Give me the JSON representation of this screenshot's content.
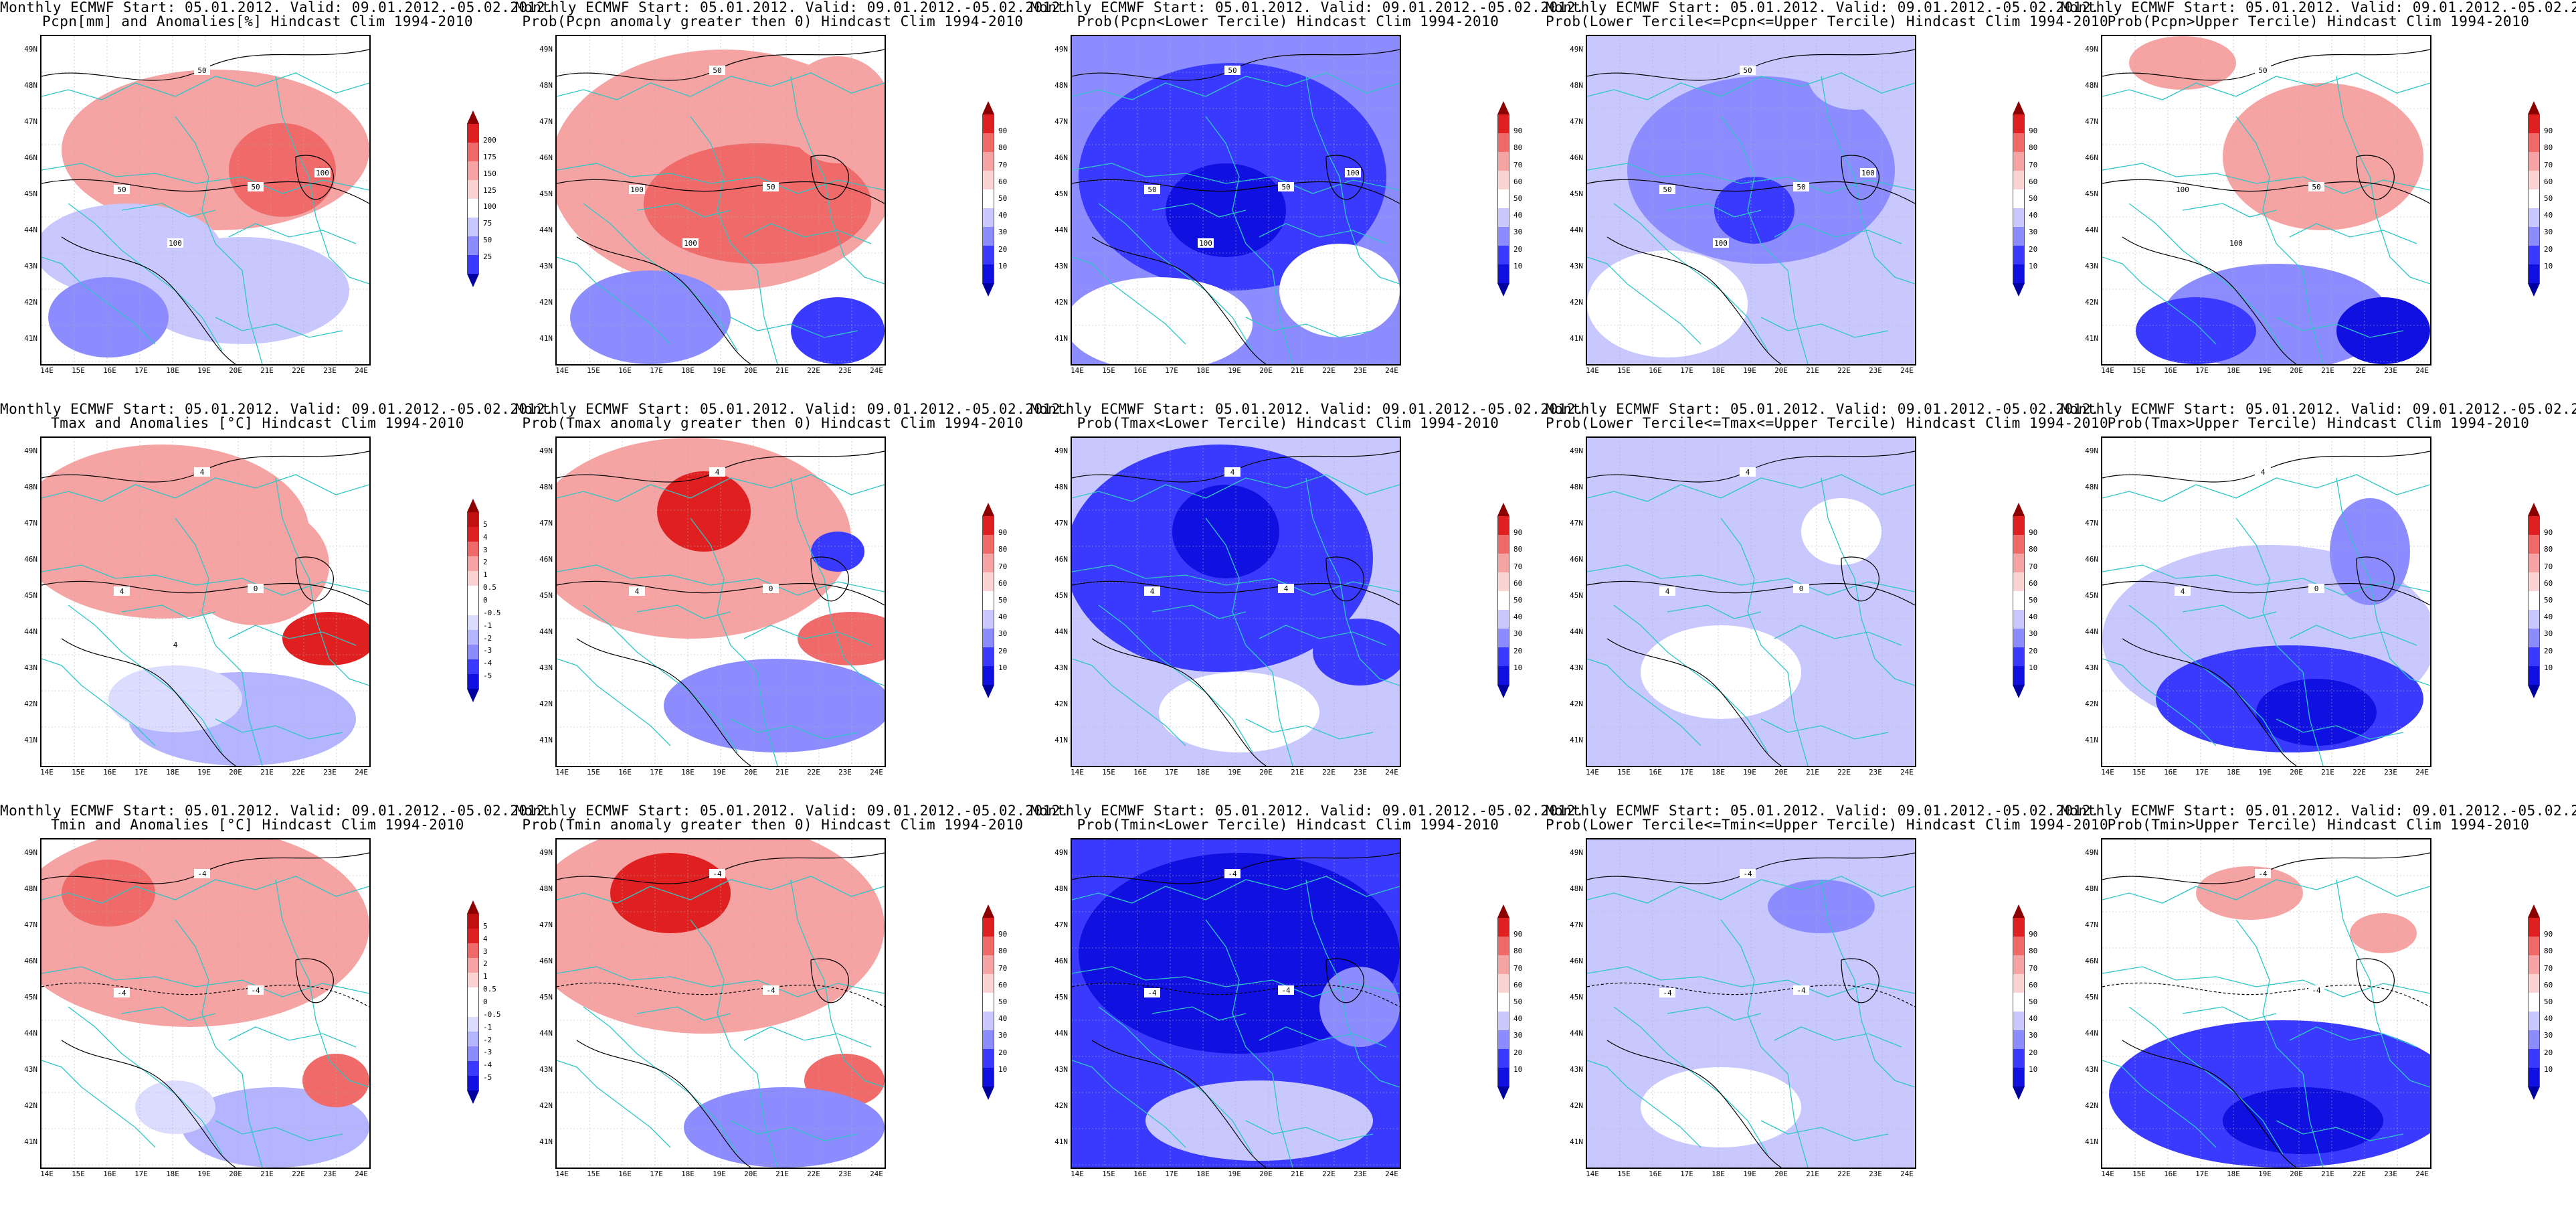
{
  "figure": {
    "common_title": "Monthly ECMWF Start: 05.01.2012. Valid: 09.01.2012.-05.02.2012.",
    "lat_labels": [
      "49N",
      "48N",
      "47N",
      "46N",
      "45N",
      "44N",
      "43N",
      "42N",
      "41N"
    ],
    "lon_labels": [
      "14E",
      "15E",
      "16E",
      "17E",
      "18E",
      "19E",
      "20E",
      "21E",
      "22E",
      "23E",
      "24E"
    ],
    "colors": {
      "background": "#ffffff",
      "country_borders": "#2ec6c6",
      "contours": "#000000",
      "frame": "#000000"
    }
  },
  "colorbars": {
    "pcpn_anomaly": {
      "labels": [
        "200",
        "175",
        "150",
        "125",
        "100",
        "75",
        "50",
        "25"
      ],
      "colors": [
        "#8b0000",
        "#e02020",
        "#f06a6a",
        "#f6a3a3",
        "#fbd3d3",
        "#ffffff",
        "#c8c8ff",
        "#8c8cff",
        "#3a3aff",
        "#0000a0"
      ]
    },
    "temp_anomaly": {
      "labels": [
        "5",
        "4",
        "3",
        "2",
        "1",
        "0.5",
        "0",
        "-0.5",
        "-1",
        "-2",
        "-3",
        "-4",
        "-5"
      ],
      "colors": [
        "#8b0000",
        "#c01010",
        "#e02020",
        "#f06a6a",
        "#f6a3a3",
        "#fbd3d3",
        "#ffffff",
        "#ffffff",
        "#dcdcff",
        "#b4b4ff",
        "#8c8cff",
        "#3a3aff",
        "#1010e0",
        "#0000a0"
      ]
    },
    "probability": {
      "labels": [
        "90",
        "80",
        "70",
        "60",
        "50",
        "40",
        "30",
        "20",
        "10"
      ],
      "colors": [
        "#8b0000",
        "#e02020",
        "#f06a6a",
        "#f6a3a3",
        "#fbd3d3",
        "#ffffff",
        "#c8c8ff",
        "#8c8cff",
        "#3a3aff",
        "#1010e0",
        "#0000a0"
      ]
    }
  },
  "panels": [
    {
      "subtitle": "Pcpn[mm] and Anomalies[%] Hindcast Clim 1994-2010",
      "colorbar": "pcpn_anomaly",
      "contour_labels": [
        "50",
        "50",
        "50",
        "100",
        "100"
      ]
    },
    {
      "subtitle": "Prob(Pcpn anomaly greater then 0) Hindcast Clim 1994-2010",
      "colorbar": "probability",
      "contour_labels": [
        "50",
        "50",
        "100",
        "100"
      ]
    },
    {
      "subtitle": "Prob(Pcpn<Lower Tercile) Hindcast Clim 1994-2010",
      "colorbar": "probability",
      "contour_labels": [
        "50",
        "50",
        "50",
        "100",
        "100"
      ]
    },
    {
      "subtitle": "Prob(Lower Tercile<=Pcpn<=Upper Tercile) Hindcast Clim 1994-2010",
      "colorbar": "probability",
      "contour_labels": [
        "50",
        "50",
        "50",
        "100",
        "100"
      ]
    },
    {
      "subtitle": "Prob(Pcpn>Upper Tercile) Hindcast Clim 1994-2010",
      "colorbar": "probability",
      "contour_labels": [
        "50",
        "50",
        "100",
        "100"
      ]
    },
    {
      "subtitle": "Tmax and Anomalies [°C] Hindcast Clim 1994-2010",
      "colorbar": "temp_anomaly",
      "contour_labels": [
        "4",
        "0",
        "4",
        "4"
      ]
    },
    {
      "subtitle": "Prob(Tmax anomaly greater then 0) Hindcast Clim 1994-2010",
      "colorbar": "probability",
      "contour_labels": [
        "4",
        "0",
        "4"
      ]
    },
    {
      "subtitle": "Prob(Tmax<Lower Tercile) Hindcast Clim 1994-2010",
      "colorbar": "probability",
      "contour_labels": [
        "4",
        "4",
        "4"
      ]
    },
    {
      "subtitle": "Prob(Lower Tercile<=Tmax<=Upper Tercile) Hindcast Clim 1994-2010",
      "colorbar": "probability",
      "contour_labels": [
        "4",
        "0",
        "4"
      ]
    },
    {
      "subtitle": "Prob(Tmax>Upper Tercile) Hindcast Clim 1994-2010",
      "colorbar": "probability",
      "contour_labels": [
        "4",
        "0",
        "4"
      ]
    },
    {
      "subtitle": "Tmin and Anomalies [°C] Hindcast Clim 1994-2010",
      "colorbar": "temp_anomaly",
      "contour_labels": [
        "-4",
        "-4",
        "-4"
      ]
    },
    {
      "subtitle": "Prob(Tmin anomaly greater then 0) Hindcast Clim 1994-2010",
      "colorbar": "probability",
      "contour_labels": [
        "-4",
        "-4"
      ]
    },
    {
      "subtitle": "Prob(Tmin<Lower Tercile) Hindcast Clim 1994-2010",
      "colorbar": "probability",
      "contour_labels": [
        "-4",
        "-4",
        "-4"
      ]
    },
    {
      "subtitle": "Prob(Lower Tercile<=Tmin<=Upper Tercile) Hindcast Clim 1994-2010",
      "colorbar": "probability",
      "contour_labels": [
        "-4",
        "-4",
        "-4"
      ]
    },
    {
      "subtitle": "Prob(Tmin>Upper Tercile) Hindcast Clim 1994-2010",
      "colorbar": "probability",
      "contour_labels": [
        "-4",
        "-4"
      ]
    }
  ]
}
